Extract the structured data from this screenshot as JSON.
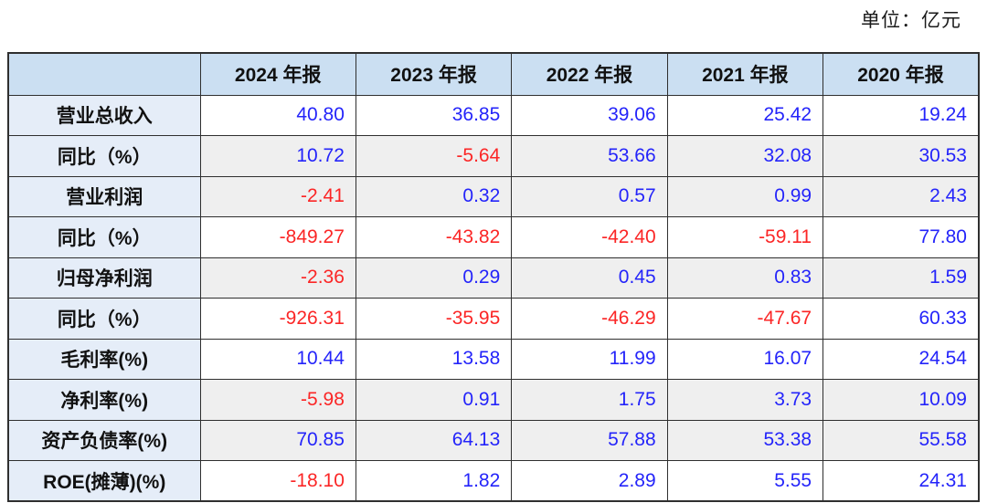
{
  "unit_label": "单位：亿元",
  "colors": {
    "positive_value": "#2424fa",
    "negative_value": "#fb2626",
    "header_bg": "#cbdff2",
    "label_bg": "#e5edf8",
    "band_gray": "#efefef",
    "band_white": "#ffffff",
    "border": "#2f2f2f"
  },
  "table": {
    "corner_label": "",
    "columns": [
      "2024 年报",
      "2023 年报",
      "2022 年报",
      "2021 年报",
      "2020 年报"
    ],
    "rows": [
      {
        "label": "营业总收入",
        "values": [
          "40.80",
          "36.85",
          "39.06",
          "25.42",
          "19.24"
        ],
        "value_colors": [
          "blue",
          "blue",
          "blue",
          "blue",
          "blue"
        ],
        "band": "white"
      },
      {
        "label": "同比（%）",
        "values": [
          "10.72",
          "-5.64",
          "53.66",
          "32.08",
          "30.53"
        ],
        "value_colors": [
          "blue",
          "red",
          "blue",
          "blue",
          "blue"
        ],
        "band": "gray"
      },
      {
        "label": "营业利润",
        "values": [
          "-2.41",
          "0.32",
          "0.57",
          "0.99",
          "2.43"
        ],
        "value_colors": [
          "red",
          "blue",
          "blue",
          "blue",
          "blue"
        ],
        "band": "gray"
      },
      {
        "label": "同比（%）",
        "values": [
          "-849.27",
          "-43.82",
          "-42.40",
          "-59.11",
          "77.80"
        ],
        "value_colors": [
          "red",
          "red",
          "red",
          "red",
          "blue"
        ],
        "band": "white"
      },
      {
        "label": "归母净利润",
        "values": [
          "-2.36",
          "0.29",
          "0.45",
          "0.83",
          "1.59"
        ],
        "value_colors": [
          "red",
          "blue",
          "blue",
          "blue",
          "blue"
        ],
        "band": "gray"
      },
      {
        "label": "同比（%）",
        "values": [
          "-926.31",
          "-35.95",
          "-46.29",
          "-47.67",
          "60.33"
        ],
        "value_colors": [
          "red",
          "red",
          "red",
          "red",
          "blue"
        ],
        "band": "white"
      },
      {
        "label": "毛利率(%)",
        "values": [
          "10.44",
          "13.58",
          "11.99",
          "16.07",
          "24.54"
        ],
        "value_colors": [
          "blue",
          "blue",
          "blue",
          "blue",
          "blue"
        ],
        "band": "white"
      },
      {
        "label": "净利率(%)",
        "values": [
          "-5.98",
          "0.91",
          "1.75",
          "3.73",
          "10.09"
        ],
        "value_colors": [
          "red",
          "blue",
          "blue",
          "blue",
          "blue"
        ],
        "band": "gray"
      },
      {
        "label": "资产负债率(%)",
        "values": [
          "70.85",
          "64.13",
          "57.88",
          "53.38",
          "55.58"
        ],
        "value_colors": [
          "blue",
          "blue",
          "blue",
          "blue",
          "blue"
        ],
        "band": "gray"
      },
      {
        "label": "ROE(摊薄)(%)",
        "values": [
          "-18.10",
          "1.82",
          "2.89",
          "5.55",
          "24.31"
        ],
        "value_colors": [
          "red",
          "blue",
          "blue",
          "blue",
          "blue"
        ],
        "band": "white"
      }
    ]
  },
  "chart_data": {
    "type": "table",
    "title": "",
    "unit": "亿元",
    "categories": [
      "2024 年报",
      "2023 年报",
      "2022 年报",
      "2021 年报",
      "2020 年报"
    ],
    "series": [
      {
        "name": "营业总收入",
        "values": [
          40.8,
          36.85,
          39.06,
          25.42,
          19.24
        ]
      },
      {
        "name": "同比（%）",
        "values": [
          10.72,
          -5.64,
          53.66,
          32.08,
          30.53
        ]
      },
      {
        "name": "营业利润",
        "values": [
          -2.41,
          0.32,
          0.57,
          0.99,
          2.43
        ]
      },
      {
        "name": "同比（%）",
        "values": [
          -849.27,
          -43.82,
          -42.4,
          -59.11,
          77.8
        ]
      },
      {
        "name": "归母净利润",
        "values": [
          -2.36,
          0.29,
          0.45,
          0.83,
          1.59
        ]
      },
      {
        "name": "同比（%）",
        "values": [
          -926.31,
          -35.95,
          -46.29,
          -47.67,
          60.33
        ]
      },
      {
        "name": "毛利率(%)",
        "values": [
          10.44,
          13.58,
          11.99,
          16.07,
          24.54
        ]
      },
      {
        "name": "净利率(%)",
        "values": [
          -5.98,
          0.91,
          1.75,
          3.73,
          10.09
        ]
      },
      {
        "name": "资产负债率(%)",
        "values": [
          70.85,
          64.13,
          57.88,
          53.38,
          55.58
        ]
      },
      {
        "name": "ROE(摊薄)(%)",
        "values": [
          -18.1,
          1.82,
          2.89,
          5.55,
          24.31
        ]
      }
    ],
    "notes": "blue = displayed in blue, negative figures displayed in red; rows banded white/gray"
  }
}
